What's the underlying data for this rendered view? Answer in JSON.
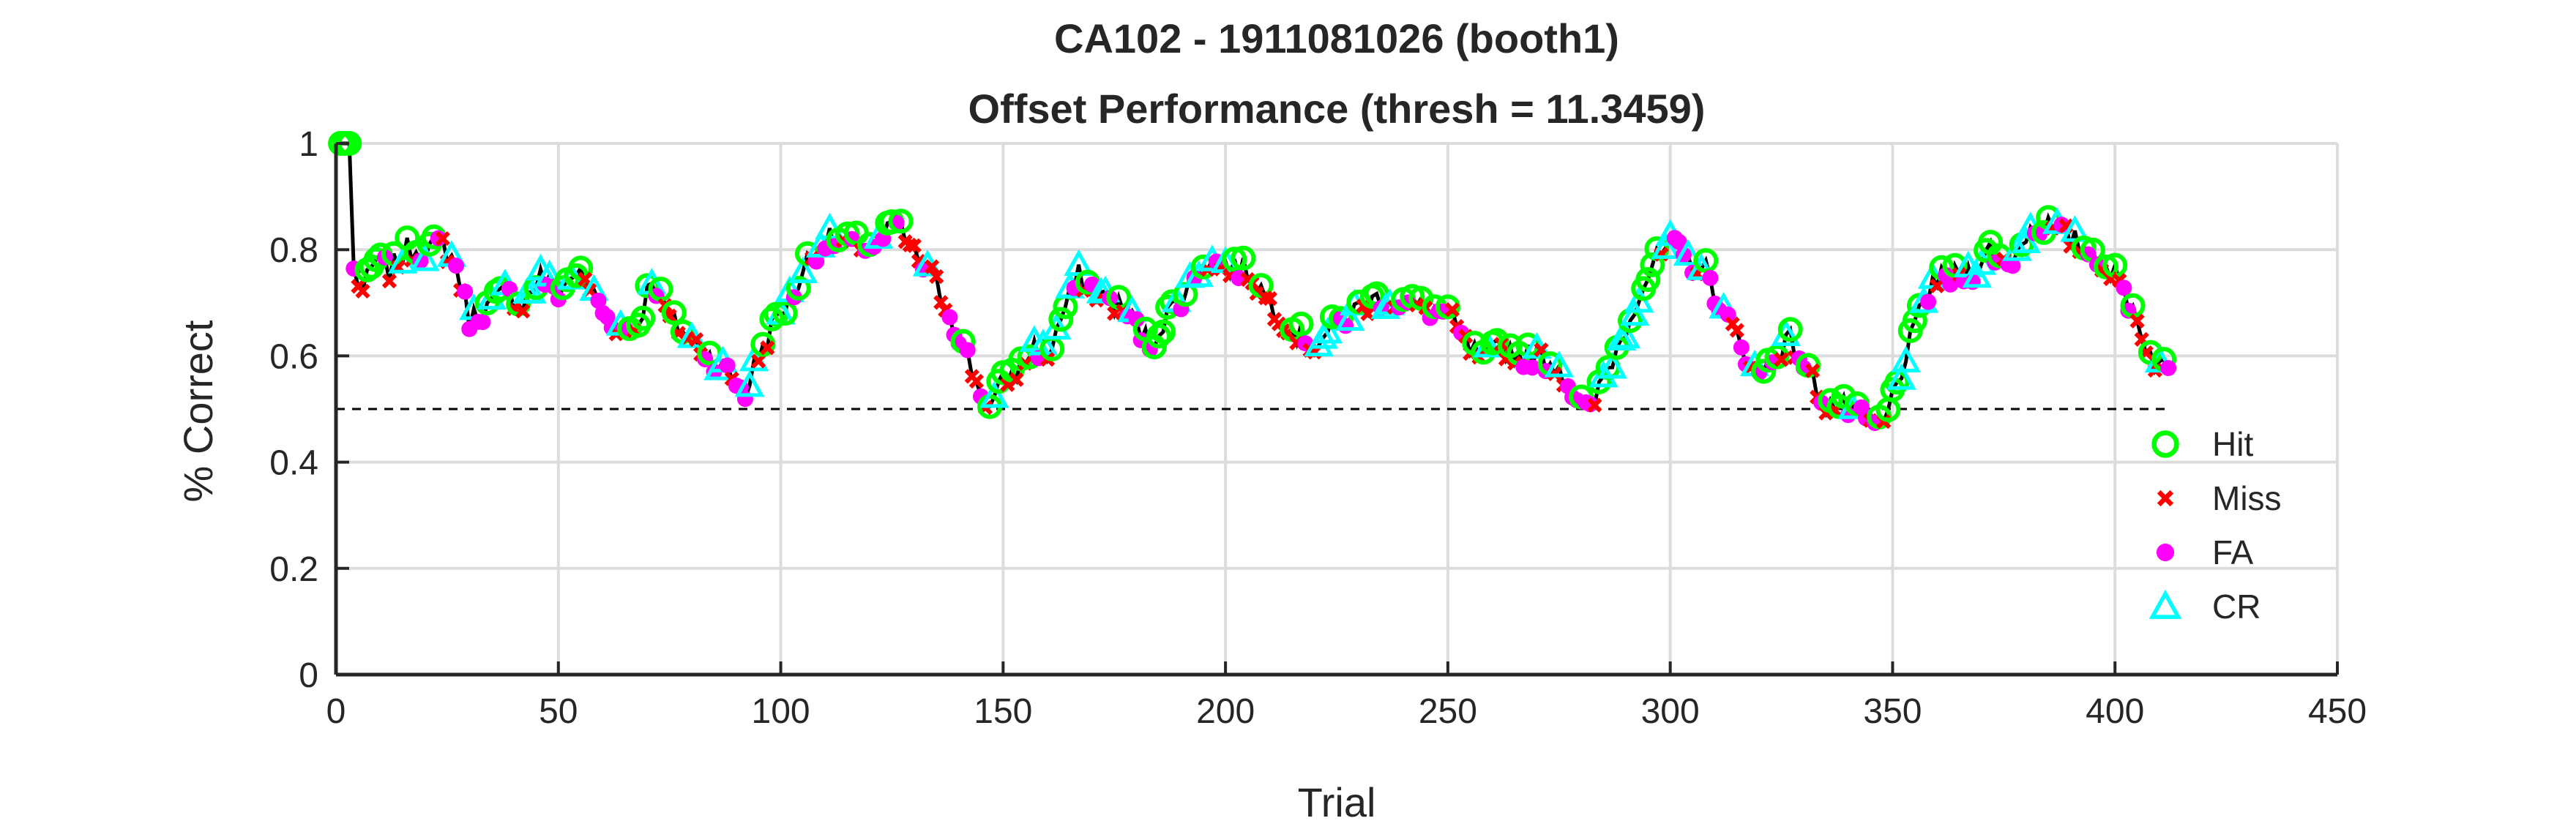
{
  "chart_data": {
    "type": "line",
    "title": "CA102 - 1911081026 (booth1)",
    "subtitle": "Offset Performance (thresh = 11.3459)",
    "xlabel": "Trial",
    "ylabel": "% Correct",
    "xlim": [
      0,
      450
    ],
    "ylim": [
      0,
      1
    ],
    "x_ticks": [
      0,
      50,
      100,
      150,
      200,
      250,
      300,
      350,
      400,
      450
    ],
    "y_ticks": [
      0,
      0.2,
      0.4,
      0.6,
      0.8,
      1
    ],
    "x_tick_labels": [
      "0",
      "50",
      "100",
      "150",
      "200",
      "250",
      "300",
      "350",
      "400",
      "450"
    ],
    "y_tick_labels": [
      "0",
      "0.2",
      "0.4",
      "0.6",
      "0.8",
      "1"
    ],
    "grid": true,
    "legend_position": "bottom-right",
    "reference_line": {
      "y": 0.5,
      "style": "dashed",
      "color": "#000000"
    },
    "line_color": "#000000",
    "performance_keypoints": [
      [
        1,
        1.0
      ],
      [
        3,
        1.0
      ],
      [
        4,
        0.76
      ],
      [
        6,
        0.72
      ],
      [
        9,
        0.78
      ],
      [
        12,
        0.76
      ],
      [
        16,
        0.8
      ],
      [
        20,
        0.8
      ],
      [
        24,
        0.81
      ],
      [
        27,
        0.77
      ],
      [
        30,
        0.67
      ],
      [
        34,
        0.69
      ],
      [
        38,
        0.72
      ],
      [
        42,
        0.7
      ],
      [
        46,
        0.75
      ],
      [
        50,
        0.72
      ],
      [
        54,
        0.76
      ],
      [
        57,
        0.73
      ],
      [
        61,
        0.67
      ],
      [
        65,
        0.65
      ],
      [
        68,
        0.66
      ],
      [
        71,
        0.75
      ],
      [
        75,
        0.67
      ],
      [
        80,
        0.63
      ],
      [
        84,
        0.6
      ],
      [
        88,
        0.57
      ],
      [
        92,
        0.53
      ],
      [
        95,
        0.6
      ],
      [
        99,
        0.67
      ],
      [
        103,
        0.72
      ],
      [
        106,
        0.78
      ],
      [
        110,
        0.82
      ],
      [
        116,
        0.81
      ],
      [
        122,
        0.81
      ],
      [
        126,
        0.85
      ],
      [
        130,
        0.79
      ],
      [
        134,
        0.75
      ],
      [
        138,
        0.68
      ],
      [
        141,
        0.62
      ],
      [
        144,
        0.55
      ],
      [
        147,
        0.5
      ],
      [
        150,
        0.55
      ],
      [
        154,
        0.58
      ],
      [
        157,
        0.62
      ],
      [
        160,
        0.6
      ],
      [
        163,
        0.67
      ],
      [
        167,
        0.75
      ],
      [
        171,
        0.72
      ],
      [
        175,
        0.7
      ],
      [
        179,
        0.67
      ],
      [
        183,
        0.62
      ],
      [
        187,
        0.68
      ],
      [
        191,
        0.72
      ],
      [
        195,
        0.78
      ],
      [
        200,
        0.77
      ],
      [
        205,
        0.76
      ],
      [
        210,
        0.7
      ],
      [
        215,
        0.65
      ],
      [
        220,
        0.62
      ],
      [
        225,
        0.66
      ],
      [
        230,
        0.69
      ],
      [
        235,
        0.71
      ],
      [
        240,
        0.7
      ],
      [
        245,
        0.69
      ],
      [
        250,
        0.68
      ],
      [
        254,
        0.62
      ],
      [
        258,
        0.59
      ],
      [
        262,
        0.62
      ],
      [
        266,
        0.6
      ],
      [
        270,
        0.6
      ],
      [
        275,
        0.58
      ],
      [
        279,
        0.52
      ],
      [
        282,
        0.49
      ],
      [
        285,
        0.56
      ],
      [
        289,
        0.63
      ],
      [
        292,
        0.7
      ],
      [
        296,
        0.77
      ],
      [
        300,
        0.81
      ],
      [
        304,
        0.78
      ],
      [
        308,
        0.76
      ],
      [
        312,
        0.68
      ],
      [
        316,
        0.62
      ],
      [
        320,
        0.56
      ],
      [
        323,
        0.6
      ],
      [
        327,
        0.63
      ],
      [
        331,
        0.57
      ],
      [
        335,
        0.51
      ],
      [
        340,
        0.5
      ],
      [
        345,
        0.47
      ],
      [
        348,
        0.47
      ],
      [
        351,
        0.55
      ],
      [
        355,
        0.65
      ],
      [
        359,
        0.74
      ],
      [
        364,
        0.75
      ],
      [
        368,
        0.76
      ],
      [
        372,
        0.8
      ],
      [
        376,
        0.77
      ],
      [
        380,
        0.83
      ],
      [
        384,
        0.85
      ],
      [
        388,
        0.83
      ],
      [
        392,
        0.81
      ],
      [
        396,
        0.79
      ],
      [
        400,
        0.75
      ],
      [
        404,
        0.69
      ],
      [
        408,
        0.6
      ],
      [
        412,
        0.57
      ]
    ],
    "series": [
      {
        "name": "Hit",
        "marker": "circle-open",
        "color": "#00ff00"
      },
      {
        "name": "Miss",
        "marker": "x",
        "color": "#ff0000"
      },
      {
        "name": "FA",
        "marker": "circle-filled",
        "color": "#ff00ff"
      },
      {
        "name": "CR",
        "marker": "triangle-open",
        "color": "#00ffff"
      }
    ]
  }
}
